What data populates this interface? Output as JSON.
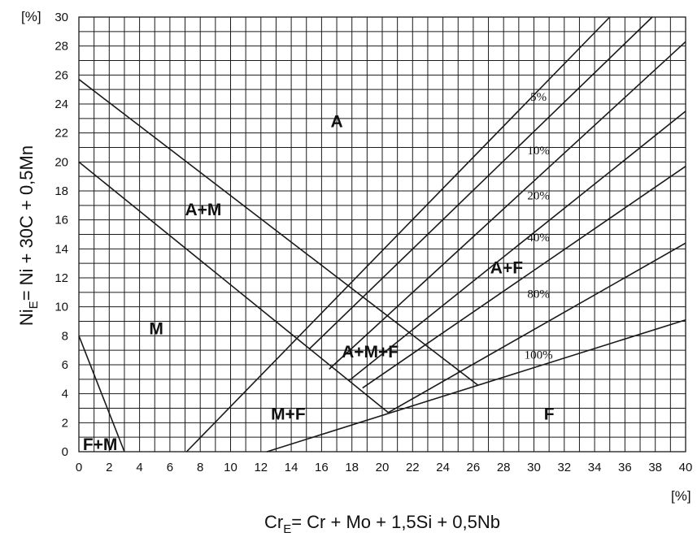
{
  "chart_data": {
    "type": "line",
    "title": "",
    "xlim": [
      0,
      40
    ],
    "ylim": [
      0,
      30
    ],
    "x_ticks": [
      0,
      2,
      4,
      6,
      8,
      10,
      12,
      14,
      16,
      18,
      20,
      22,
      24,
      26,
      28,
      30,
      32,
      34,
      36,
      38,
      40
    ],
    "y_ticks": [
      0,
      2,
      4,
      6,
      8,
      10,
      12,
      14,
      16,
      18,
      20,
      22,
      24,
      26,
      28,
      30
    ],
    "x_unit": "[%]",
    "y_unit": "[%]",
    "xlabel": {
      "main": "Cr",
      "sub": "E",
      "rest": "= Cr + Mo + 1,5Si + 0,5Nb"
    },
    "ylabel": {
      "main": "Ni",
      "sub": "E",
      "rest": "= Ni + 30C + 0,5Mn"
    },
    "grid": true,
    "lines": [
      {
        "points": [
          [
            0,
            8
          ],
          [
            3.0,
            0
          ]
        ]
      },
      {
        "points": [
          [
            0,
            25.7
          ],
          [
            26.3,
            4.6
          ]
        ]
      },
      {
        "points": [
          [
            0,
            20.0
          ],
          [
            20.4,
            2.7
          ]
        ]
      },
      {
        "points": [
          [
            7.1,
            0
          ],
          [
            35.0,
            30
          ]
        ]
      },
      {
        "points": [
          [
            15.2,
            7.1
          ],
          [
            37.8,
            30
          ]
        ]
      },
      {
        "points": [
          [
            16.5,
            5.7
          ],
          [
            40,
            28.3
          ]
        ]
      },
      {
        "points": [
          [
            17.8,
            4.9
          ],
          [
            40,
            23.5
          ]
        ]
      },
      {
        "points": [
          [
            18.7,
            4.4
          ],
          [
            40,
            19.7
          ]
        ]
      },
      {
        "points": [
          [
            20.4,
            2.7
          ],
          [
            40,
            14.4
          ]
        ]
      },
      {
        "points": [
          [
            12.4,
            0
          ],
          [
            40,
            9.1
          ]
        ]
      }
    ],
    "region_labels": [
      {
        "text": "A",
        "x": 17.0,
        "y": 22.8
      },
      {
        "text": "A+M",
        "x": 8.2,
        "y": 16.7
      },
      {
        "text": "A+F",
        "x": 28.2,
        "y": 12.7
      },
      {
        "text": "M",
        "x": 5.1,
        "y": 8.5
      },
      {
        "text": "A+M+F",
        "x": 19.2,
        "y": 6.9
      },
      {
        "text": "M+F",
        "x": 13.8,
        "y": 2.6
      },
      {
        "text": "F",
        "x": 31.0,
        "y": 2.6
      },
      {
        "text": "F+M",
        "x": 1.4,
        "y": 0.5
      }
    ],
    "annotations": [
      {
        "text": "5%",
        "x": 30.3,
        "y": 24.5
      },
      {
        "text": "10%",
        "x": 30.3,
        "y": 20.8
      },
      {
        "text": "20%",
        "x": 30.3,
        "y": 17.7
      },
      {
        "text": "40%",
        "x": 30.3,
        "y": 14.8
      },
      {
        "text": "80%",
        "x": 30.3,
        "y": 10.9
      },
      {
        "text": "100%",
        "x": 30.3,
        "y": 6.7
      }
    ]
  }
}
